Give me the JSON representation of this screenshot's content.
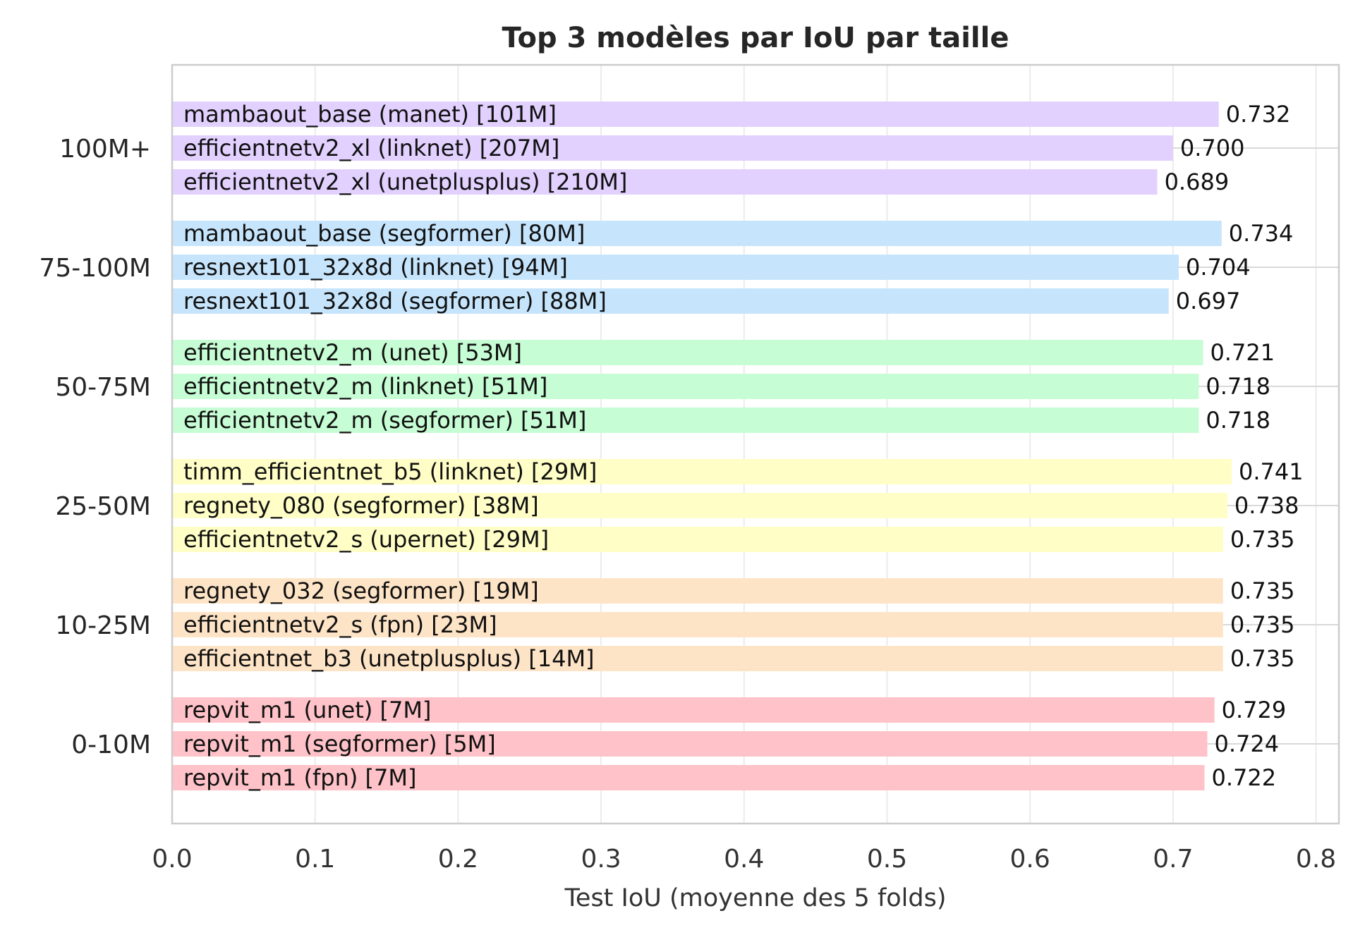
{
  "chart_data": {
    "type": "bar",
    "orientation": "horizontal",
    "title": "Top 3 modèles par IoU par taille",
    "xlabel": "Test IoU (moyenne des 5 folds)",
    "ylabel": "",
    "xlim": [
      0,
      0.816
    ],
    "xticks": [
      "0.0",
      "0.1",
      "0.2",
      "0.3",
      "0.4",
      "0.5",
      "0.6",
      "0.7",
      "0.8"
    ],
    "grid": true,
    "groups": [
      {
        "category": "100M+",
        "color": "#e2d1ff",
        "bars": [
          {
            "label": "mambaout_base (manet) [101M]",
            "value": 0.732,
            "value_label": "0.732"
          },
          {
            "label": "efficientnetv2_xl (linknet) [207M]",
            "value": 0.7,
            "value_label": "0.700"
          },
          {
            "label": "efficientnetv2_xl (unetplusplus) [210M]",
            "value": 0.689,
            "value_label": "0.689"
          }
        ]
      },
      {
        "category": "75-100M",
        "color": "#c6e5fd",
        "bars": [
          {
            "label": "mambaout_base (segformer) [80M]",
            "value": 0.734,
            "value_label": "0.734"
          },
          {
            "label": "resnext101_32x8d (linknet) [94M]",
            "value": 0.704,
            "value_label": "0.704"
          },
          {
            "label": "resnext101_32x8d (segformer) [88M]",
            "value": 0.697,
            "value_label": "0.697"
          }
        ]
      },
      {
        "category": "50-75M",
        "color": "#c6fdd4",
        "bars": [
          {
            "label": "efficientnetv2_m (unet) [53M]",
            "value": 0.721,
            "value_label": "0.721"
          },
          {
            "label": "efficientnetv2_m (linknet) [51M]",
            "value": 0.718,
            "value_label": "0.718"
          },
          {
            "label": "efficientnetv2_m (segformer) [51M]",
            "value": 0.718,
            "value_label": "0.718"
          }
        ]
      },
      {
        "category": "25-50M",
        "color": "#fefec6",
        "bars": [
          {
            "label": "timm_efficientnet_b5 (linknet) [29M]",
            "value": 0.741,
            "value_label": "0.741"
          },
          {
            "label": "regnety_080 (segformer) [38M]",
            "value": 0.738,
            "value_label": "0.738"
          },
          {
            "label": "efficientnetv2_s (upernet) [29M]",
            "value": 0.735,
            "value_label": "0.735"
          }
        ]
      },
      {
        "category": "10-25M",
        "color": "#fee4c6",
        "bars": [
          {
            "label": "regnety_032 (segformer) [19M]",
            "value": 0.735,
            "value_label": "0.735"
          },
          {
            "label": "efficientnetv2_s (fpn) [23M]",
            "value": 0.735,
            "value_label": "0.735"
          },
          {
            "label": "efficientnet_b3 (unetplusplus) [14M]",
            "value": 0.735,
            "value_label": "0.735"
          }
        ]
      },
      {
        "category": "0-10M",
        "color": "#fec2c8",
        "bars": [
          {
            "label": "repvit_m1 (unet) [7M]",
            "value": 0.729,
            "value_label": "0.729"
          },
          {
            "label": "repvit_m1 (segformer) [5M]",
            "value": 0.724,
            "value_label": "0.724"
          },
          {
            "label": "repvit_m1 (fpn) [7M]",
            "value": 0.722,
            "value_label": "0.722"
          }
        ]
      }
    ]
  }
}
